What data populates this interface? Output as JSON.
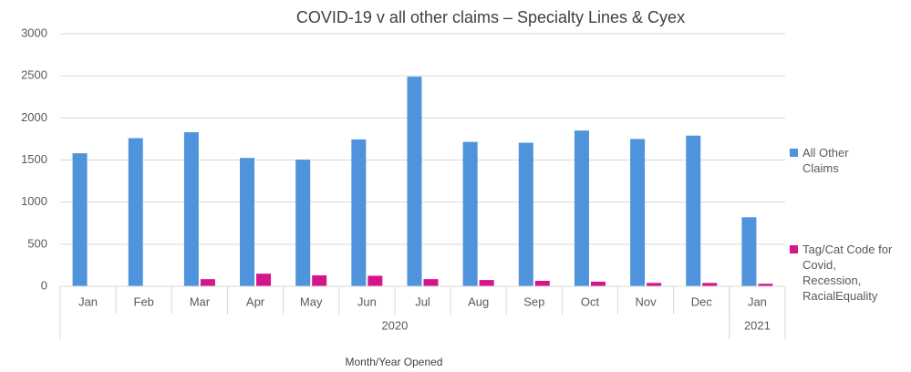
{
  "chart_data": {
    "type": "bar",
    "title": "COVID-19 v all other claims – Specialty Lines & Cyex",
    "x_label": "Month/Year Opened",
    "categories": [
      "Jan",
      "Feb",
      "Mar",
      "Apr",
      "May",
      "Jun",
      "Jul",
      "Aug",
      "Sep",
      "Oct",
      "Nov",
      "Dec",
      "Jan"
    ],
    "year_groups": [
      {
        "name": "2020",
        "count": 12
      },
      {
        "name": "2021",
        "count": 1
      }
    ],
    "series": [
      {
        "name": "All Other Claims",
        "color": "#4f93dc",
        "values": [
          1580,
          1760,
          1830,
          1525,
          1505,
          1745,
          2490,
          1715,
          1705,
          1850,
          1750,
          1790,
          820
        ]
      },
      {
        "name": "Tag/Cat Code for Covid, Recession, RacialEquality",
        "color": "#d4158c",
        "values": [
          0,
          0,
          85,
          150,
          130,
          125,
          85,
          75,
          65,
          55,
          40,
          40,
          30
        ]
      }
    ],
    "ylim": [
      0,
      3000
    ],
    "yticks": [
      0,
      500,
      1000,
      1500,
      2000,
      2500,
      3000
    ],
    "grid": true,
    "legend": "right"
  }
}
